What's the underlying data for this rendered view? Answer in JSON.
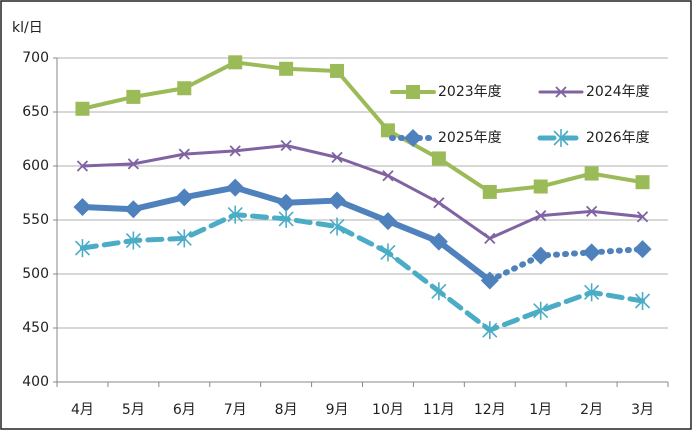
{
  "chart_data": {
    "type": "line",
    "y_label": "kl/日",
    "categories": [
      "4月",
      "5月",
      "6月",
      "7月",
      "8月",
      "9月",
      "10月",
      "11月",
      "12月",
      "1月",
      "2月",
      "3月"
    ],
    "series": [
      {
        "name": "2023年度",
        "color": "#9bbb59",
        "marker": "square",
        "style": "solid",
        "values": [
          653,
          664,
          672,
          696,
          690,
          688,
          633,
          607,
          576,
          581,
          593,
          585
        ]
      },
      {
        "name": "2024年度",
        "color": "#8064a2",
        "marker": "x",
        "style": "solid",
        "values": [
          600,
          602,
          611,
          614,
          619,
          608,
          591,
          566,
          533,
          554,
          558,
          553
        ]
      },
      {
        "name": "2025年度",
        "color": "#4f81bd",
        "marker": "diamond",
        "style": "solid",
        "dotted_from": 8,
        "values": [
          562,
          560,
          571,
          580,
          566,
          568,
          549,
          530,
          494,
          517,
          520,
          523
        ]
      },
      {
        "name": "2026年度",
        "color": "#4bacc6",
        "marker": "asterisk",
        "style": "dashed",
        "values": [
          524,
          531,
          533,
          555,
          551,
          544,
          520,
          484,
          448,
          466,
          483,
          475
        ]
      }
    ],
    "ylim": [
      400,
      700
    ],
    "yticks": [
      400,
      450,
      500,
      550,
      600,
      650,
      700
    ],
    "grid": true
  }
}
